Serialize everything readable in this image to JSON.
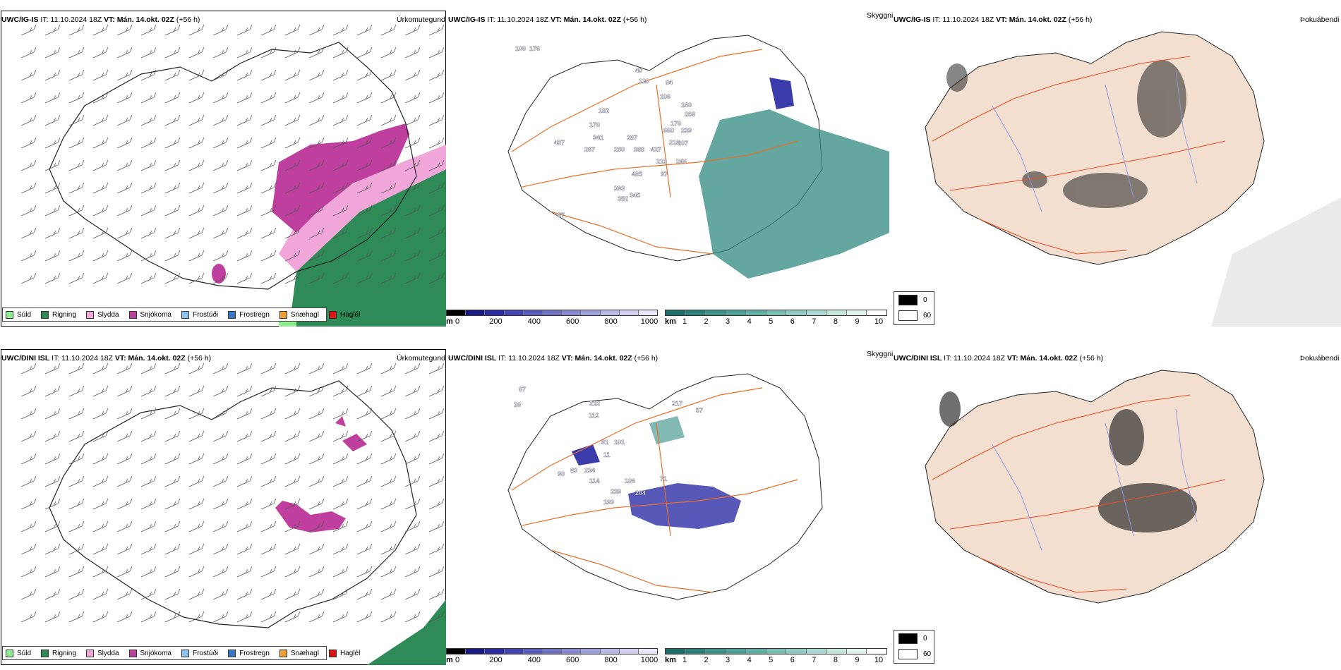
{
  "rows": [
    {
      "model": "UWC/IG-IS",
      "it": "IT: 11.10.2024 18Z",
      "vt": "VT: Mán. 14.okt. 02Z",
      "lead": "(+56 h)",
      "titles": {
        "precip": "Úrkomutegund",
        "cloud_top": "Skyggni",
        "fog": "Þokuábendi"
      },
      "labels": [
        "100",
        "176",
        "40",
        "120",
        "84",
        "106",
        "182",
        "160",
        "268",
        "170",
        "176",
        "239",
        "341",
        "660",
        "287",
        "207",
        "267",
        "230",
        "388",
        "427",
        "216",
        "213",
        "246",
        "97",
        "485",
        "293",
        "352",
        "345",
        "87",
        "437"
      ]
    },
    {
      "model": "UWC/DINI ISL",
      "it": "IT: 11.10.2024 18Z",
      "vt": "VT: Mán. 14.okt. 02Z",
      "lead": "(+56 h)",
      "titles": {
        "precip": "Úrkomutegund",
        "cloud_top": "Skyggni",
        "fog": "Þokuábendi"
      },
      "labels": [
        "87",
        "26",
        "212",
        "112",
        "217",
        "57",
        "61",
        "101",
        "11",
        "90",
        "83",
        "234",
        "114",
        "106",
        "71",
        "239",
        "204",
        "199"
      ]
    }
  ],
  "precip_legend": [
    {
      "label": "Súld",
      "color": "#90ee90"
    },
    {
      "label": "Rigning",
      "color": "#2e8b57"
    },
    {
      "label": "Slydda",
      "color": "#f0a6d8"
    },
    {
      "label": "Snjókoma",
      "color": "#bf3f9f"
    },
    {
      "label": "Frostúði",
      "color": "#8ec0f0"
    },
    {
      "label": "Frostregn",
      "color": "#3777c4"
    },
    {
      "label": "Snæhagl",
      "color": "#f0a030"
    },
    {
      "label": "Haglél",
      "color": "#dd1111"
    }
  ],
  "elev_bar": {
    "unit": "m",
    "ticks": [
      "0",
      "200",
      "400",
      "600",
      "800",
      "1000"
    ],
    "colors": [
      "#000000",
      "#1a1a80",
      "#2c2ca0",
      "#4444b0",
      "#5a5ab8",
      "#7070c0",
      "#8888cc",
      "#a0a0d8",
      "#b8b8e4",
      "#d0d0ee",
      "#e8e8f8"
    ]
  },
  "km_bar": {
    "unit": "km",
    "ticks": [
      "1",
      "2",
      "3",
      "4",
      "5",
      "6",
      "7",
      "8",
      "9",
      "10"
    ],
    "colors": [
      "#1f6f6a",
      "#2e7f78",
      "#3e8f86",
      "#4f9f94",
      "#62aea3",
      "#78bcb2",
      "#90cac1",
      "#aad7cf",
      "#c5e4de",
      "#e2f1ee",
      "#ffffff"
    ]
  },
  "cloud_legend": [
    {
      "label": "0",
      "color": "#000000"
    },
    {
      "label": "60",
      "color": "#ffffff"
    }
  ],
  "colors": {
    "land": "#f3dfd0",
    "road": "#e8702a",
    "river": "#8a96e8",
    "snow": "#bf3f9f",
    "rain": "#2e8b57",
    "sleet": "#f0a6d8",
    "cloud_teal": "#2f8a80",
    "cloud_blue": "#3b3bab"
  }
}
